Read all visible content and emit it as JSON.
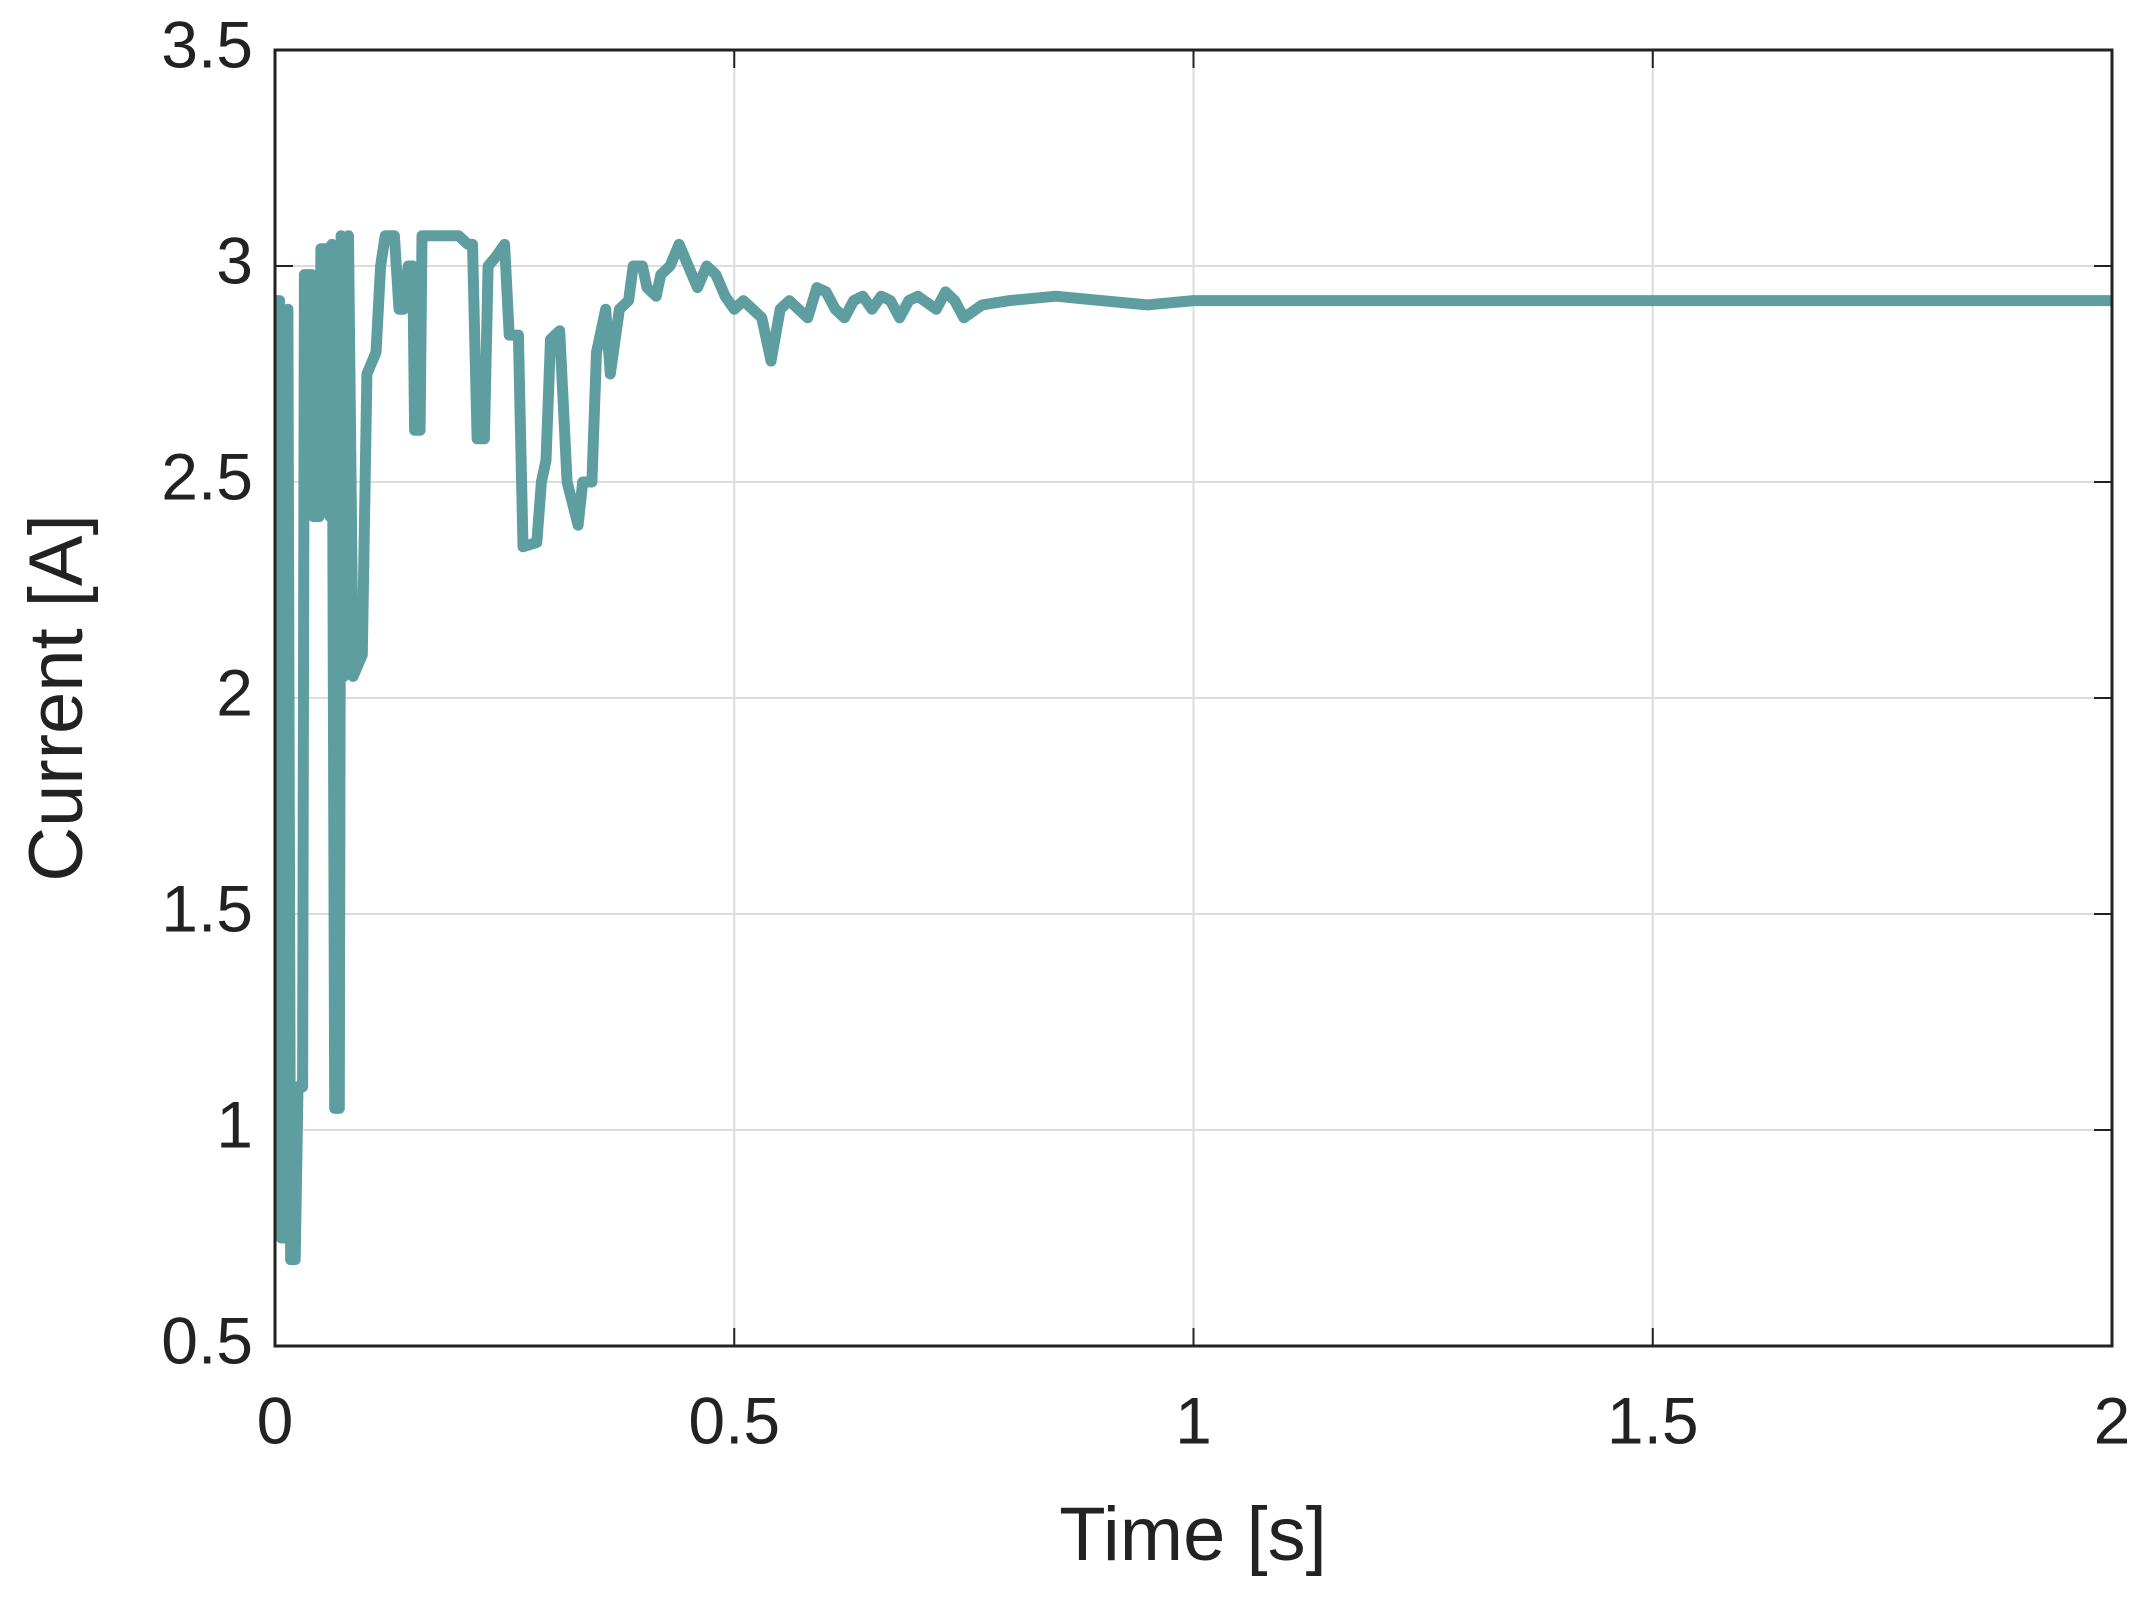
{
  "chart_data": {
    "type": "line",
    "xlabel": "Time [s]",
    "ylabel": "Current [A]",
    "xlim": [
      0,
      2
    ],
    "xticks": [
      0,
      0.5,
      1,
      1.5,
      2
    ],
    "ylim": [
      0.5,
      3.5
    ],
    "yticks": [
      0.5,
      1,
      1.5,
      2,
      2.5,
      3,
      3.5
    ],
    "grid": true,
    "series": [
      {
        "color": "#5f9ea0",
        "x": [
          0,
          0.005,
          0.007,
          0.012,
          0.014,
          0.017,
          0.022,
          0.025,
          0.03,
          0.032,
          0.04,
          0.042,
          0.048,
          0.05,
          0.058,
          0.06,
          0.062,
          0.065,
          0.07,
          0.072,
          0.075,
          0.08,
          0.085,
          0.095,
          0.1,
          0.11,
          0.115,
          0.12,
          0.13,
          0.135,
          0.14,
          0.145,
          0.15,
          0.152,
          0.158,
          0.16,
          0.2,
          0.21,
          0.215,
          0.22,
          0.228,
          0.232,
          0.24,
          0.25,
          0.255,
          0.265,
          0.27,
          0.285,
          0.29,
          0.295,
          0.3,
          0.31,
          0.318,
          0.33,
          0.335,
          0.345,
          0.35,
          0.355,
          0.36,
          0.365,
          0.375,
          0.385,
          0.39,
          0.4,
          0.405,
          0.415,
          0.42,
          0.43,
          0.44,
          0.45,
          0.46,
          0.47,
          0.48,
          0.49,
          0.5,
          0.51,
          0.52,
          0.53,
          0.54,
          0.55,
          0.56,
          0.57,
          0.58,
          0.59,
          0.6,
          0.61,
          0.62,
          0.63,
          0.64,
          0.65,
          0.66,
          0.67,
          0.68,
          0.69,
          0.7,
          0.72,
          0.73,
          0.74,
          0.75,
          0.77,
          0.8,
          0.85,
          0.9,
          0.95,
          1.0,
          1.5,
          2.0
        ],
        "values": [
          2.92,
          2.92,
          0.75,
          0.75,
          2.9,
          0.7,
          0.7,
          1.1,
          1.1,
          2.98,
          2.98,
          2.42,
          2.42,
          3.04,
          3.04,
          2.42,
          3.05,
          1.05,
          1.05,
          3.07,
          2.05,
          3.07,
          2.05,
          2.1,
          2.75,
          2.8,
          3.0,
          3.07,
          3.07,
          2.9,
          2.9,
          3.0,
          3.0,
          2.62,
          2.62,
          3.07,
          3.07,
          3.05,
          3.05,
          2.6,
          2.6,
          3.0,
          3.02,
          3.05,
          2.84,
          2.84,
          2.35,
          2.36,
          2.5,
          2.55,
          2.83,
          2.85,
          2.5,
          2.4,
          2.5,
          2.5,
          2.8,
          2.85,
          2.9,
          2.75,
          2.9,
          2.92,
          3.0,
          3.0,
          2.95,
          2.93,
          2.98,
          3.0,
          3.05,
          3.0,
          2.95,
          3.0,
          2.98,
          2.93,
          2.9,
          2.92,
          2.9,
          2.88,
          2.78,
          2.9,
          2.92,
          2.9,
          2.88,
          2.95,
          2.94,
          2.9,
          2.88,
          2.92,
          2.93,
          2.9,
          2.93,
          2.92,
          2.88,
          2.92,
          2.93,
          2.9,
          2.94,
          2.92,
          2.88,
          2.91,
          2.92,
          2.93,
          2.92,
          2.91,
          2.92,
          2.92,
          2.92
        ]
      }
    ]
  }
}
